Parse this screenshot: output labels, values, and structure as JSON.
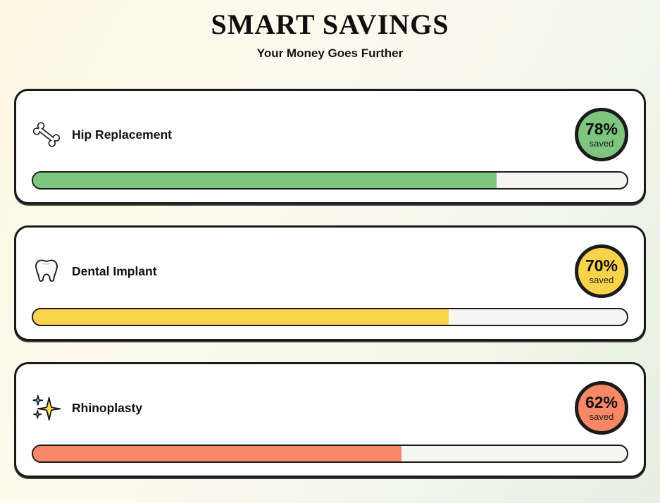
{
  "header": {
    "title": "SMART SAVINGS",
    "subtitle": "Your Money Goes Further"
  },
  "cards": [
    {
      "label": "Hip Replacement",
      "icon": "bone-icon",
      "percent": 78,
      "percent_label": "78%",
      "saved_label": "saved",
      "color": "#7ec67f",
      "track_color": "#f5f5f2"
    },
    {
      "label": "Dental Implant",
      "icon": "tooth-icon",
      "percent": 70,
      "percent_label": "70%",
      "saved_label": "saved",
      "color": "#f9d34b",
      "track_color": "#f5f5f2"
    },
    {
      "label": "Rhinoplasty",
      "icon": "sparkles-icon",
      "percent": 62,
      "percent_label": "62%",
      "saved_label": "saved",
      "color": "#fa8765",
      "track_color": "#f5f5f2"
    }
  ]
}
